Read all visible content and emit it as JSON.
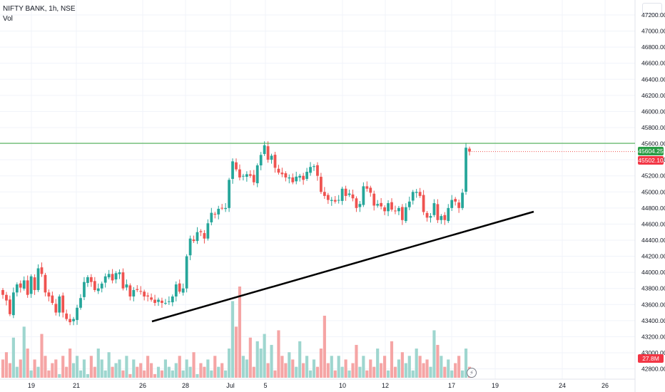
{
  "legend": {
    "symbol": "NIFTY BANK, 1h, NSE",
    "volume_label": "Vol"
  },
  "price_axis": {
    "ticks": [
      "42800.00",
      "43000.00",
      "43200.00",
      "43400.00",
      "43600.00",
      "43800.00",
      "44000.00",
      "44200.00",
      "44400.00",
      "44600.00",
      "44800.00",
      "45000.00",
      "45200.00",
      "45400.00",
      "45600.00",
      "45800.00",
      "46000.00",
      "46200.00",
      "46400.00",
      "46600.00",
      "46800.00",
      "47000.00",
      "47200.00"
    ]
  },
  "time_axis": {
    "labels": [
      "19",
      "21",
      "26",
      "28",
      "Jul",
      "5",
      "10",
      "12",
      "17",
      "19",
      "24",
      "26"
    ]
  },
  "badges": {
    "horizontal_line_price": "45604.25",
    "last_price": "45502.10",
    "volume": "27.8M"
  },
  "colors": {
    "up": "#26a69a",
    "down": "#ef5350",
    "vol_up": "#9ed6cf",
    "vol_down": "#f5a5a5",
    "horizontal_line": "#4caf50",
    "trendline": "#000000",
    "grid": "#f0f3fa",
    "axis_text": "#131722"
  },
  "chart_data": {
    "type": "candlestick",
    "title": "NIFTY BANK, 1h, NSE",
    "symbol": "NIFTY BANK",
    "interval": "1h",
    "exchange": "NSE",
    "y_range": [
      42800,
      47300
    ],
    "x_labels": [
      "19",
      "21",
      "26",
      "28",
      "Jul",
      "5",
      "10",
      "12",
      "17",
      "19",
      "24",
      "26"
    ],
    "horizontal_line": 45604.25,
    "last_price": 45502.1,
    "last_volume": "27.8M",
    "trendline": {
      "start": {
        "date": "Jun 26",
        "price": 43520
      },
      "end": {
        "date": "Jul 22",
        "price": 44840
      }
    },
    "closes": [
      43720,
      43650,
      43480,
      43750,
      43850,
      43810,
      43900,
      43720,
      43950,
      43780,
      44050,
      43980,
      43750,
      43700,
      43620,
      43500,
      43700,
      43500,
      43420,
      43380,
      43420,
      43560,
      43680,
      43880,
      43940,
      43880,
      43780,
      43800,
      43860,
      43950,
      43980,
      43900,
      43990,
      44000,
      43800,
      43850,
      43700,
      43780,
      43780,
      43760,
      43700,
      43700,
      43660,
      43620,
      43660,
      43620,
      43620,
      43640,
      43700,
      43850,
      43760,
      43800,
      44200,
      44420,
      44390,
      44500,
      44500,
      44420,
      44610,
      44740,
      44720,
      44790,
      44800,
      44800,
      45150,
      45380,
      45280,
      45180,
      45200,
      45220,
      45200,
      45120,
      45330,
      45460,
      45580,
      45400,
      45450,
      45300,
      45240,
      45220,
      45180,
      45180,
      45120,
      45190,
      45200,
      45150,
      45250,
      45310,
      45320,
      45200,
      45000,
      44950,
      44900,
      44900,
      44880,
      44900,
      45040,
      44950,
      44980,
      44920,
      44800,
      44850,
      45070,
      45040,
      44990,
      44830,
      44850,
      44820,
      44760,
      44860,
      44780,
      44760,
      44800,
      44650,
      44810,
      44880,
      45000,
      45000,
      44950,
      44750,
      44680,
      44700,
      44860,
      44650,
      44700,
      44650,
      44800,
      44900,
      44880,
      44800,
      44990,
      45550,
      45502
    ],
    "volumes": [
      5,
      7,
      4,
      11,
      3,
      5,
      14,
      8,
      2,
      5,
      3,
      12,
      6,
      2,
      4,
      5,
      1,
      6,
      3,
      8,
      4,
      6,
      2,
      5,
      1,
      6,
      3,
      8,
      5,
      2,
      7,
      3,
      4,
      5,
      2,
      6,
      1,
      5,
      3,
      4,
      2,
      6,
      4,
      1,
      3,
      2,
      5,
      3,
      2,
      4,
      6,
      2,
      5,
      3,
      7,
      1,
      4,
      3,
      5,
      2,
      6,
      3,
      4,
      2,
      8,
      21,
      14,
      25,
      6,
      5,
      11,
      3,
      10,
      8,
      12,
      4,
      9,
      2,
      13,
      6,
      4,
      7,
      5,
      3,
      10,
      4,
      6,
      2,
      5,
      3,
      8,
      17,
      4,
      6,
      2,
      6,
      3,
      5,
      2,
      4,
      9,
      3,
      6,
      2,
      5,
      3,
      8,
      4,
      6,
      2,
      10,
      3,
      5,
      7,
      4,
      6,
      2,
      8,
      6,
      4,
      5,
      3,
      13,
      9,
      6,
      3,
      5,
      2,
      4,
      6,
      2,
      8,
      3
    ]
  }
}
